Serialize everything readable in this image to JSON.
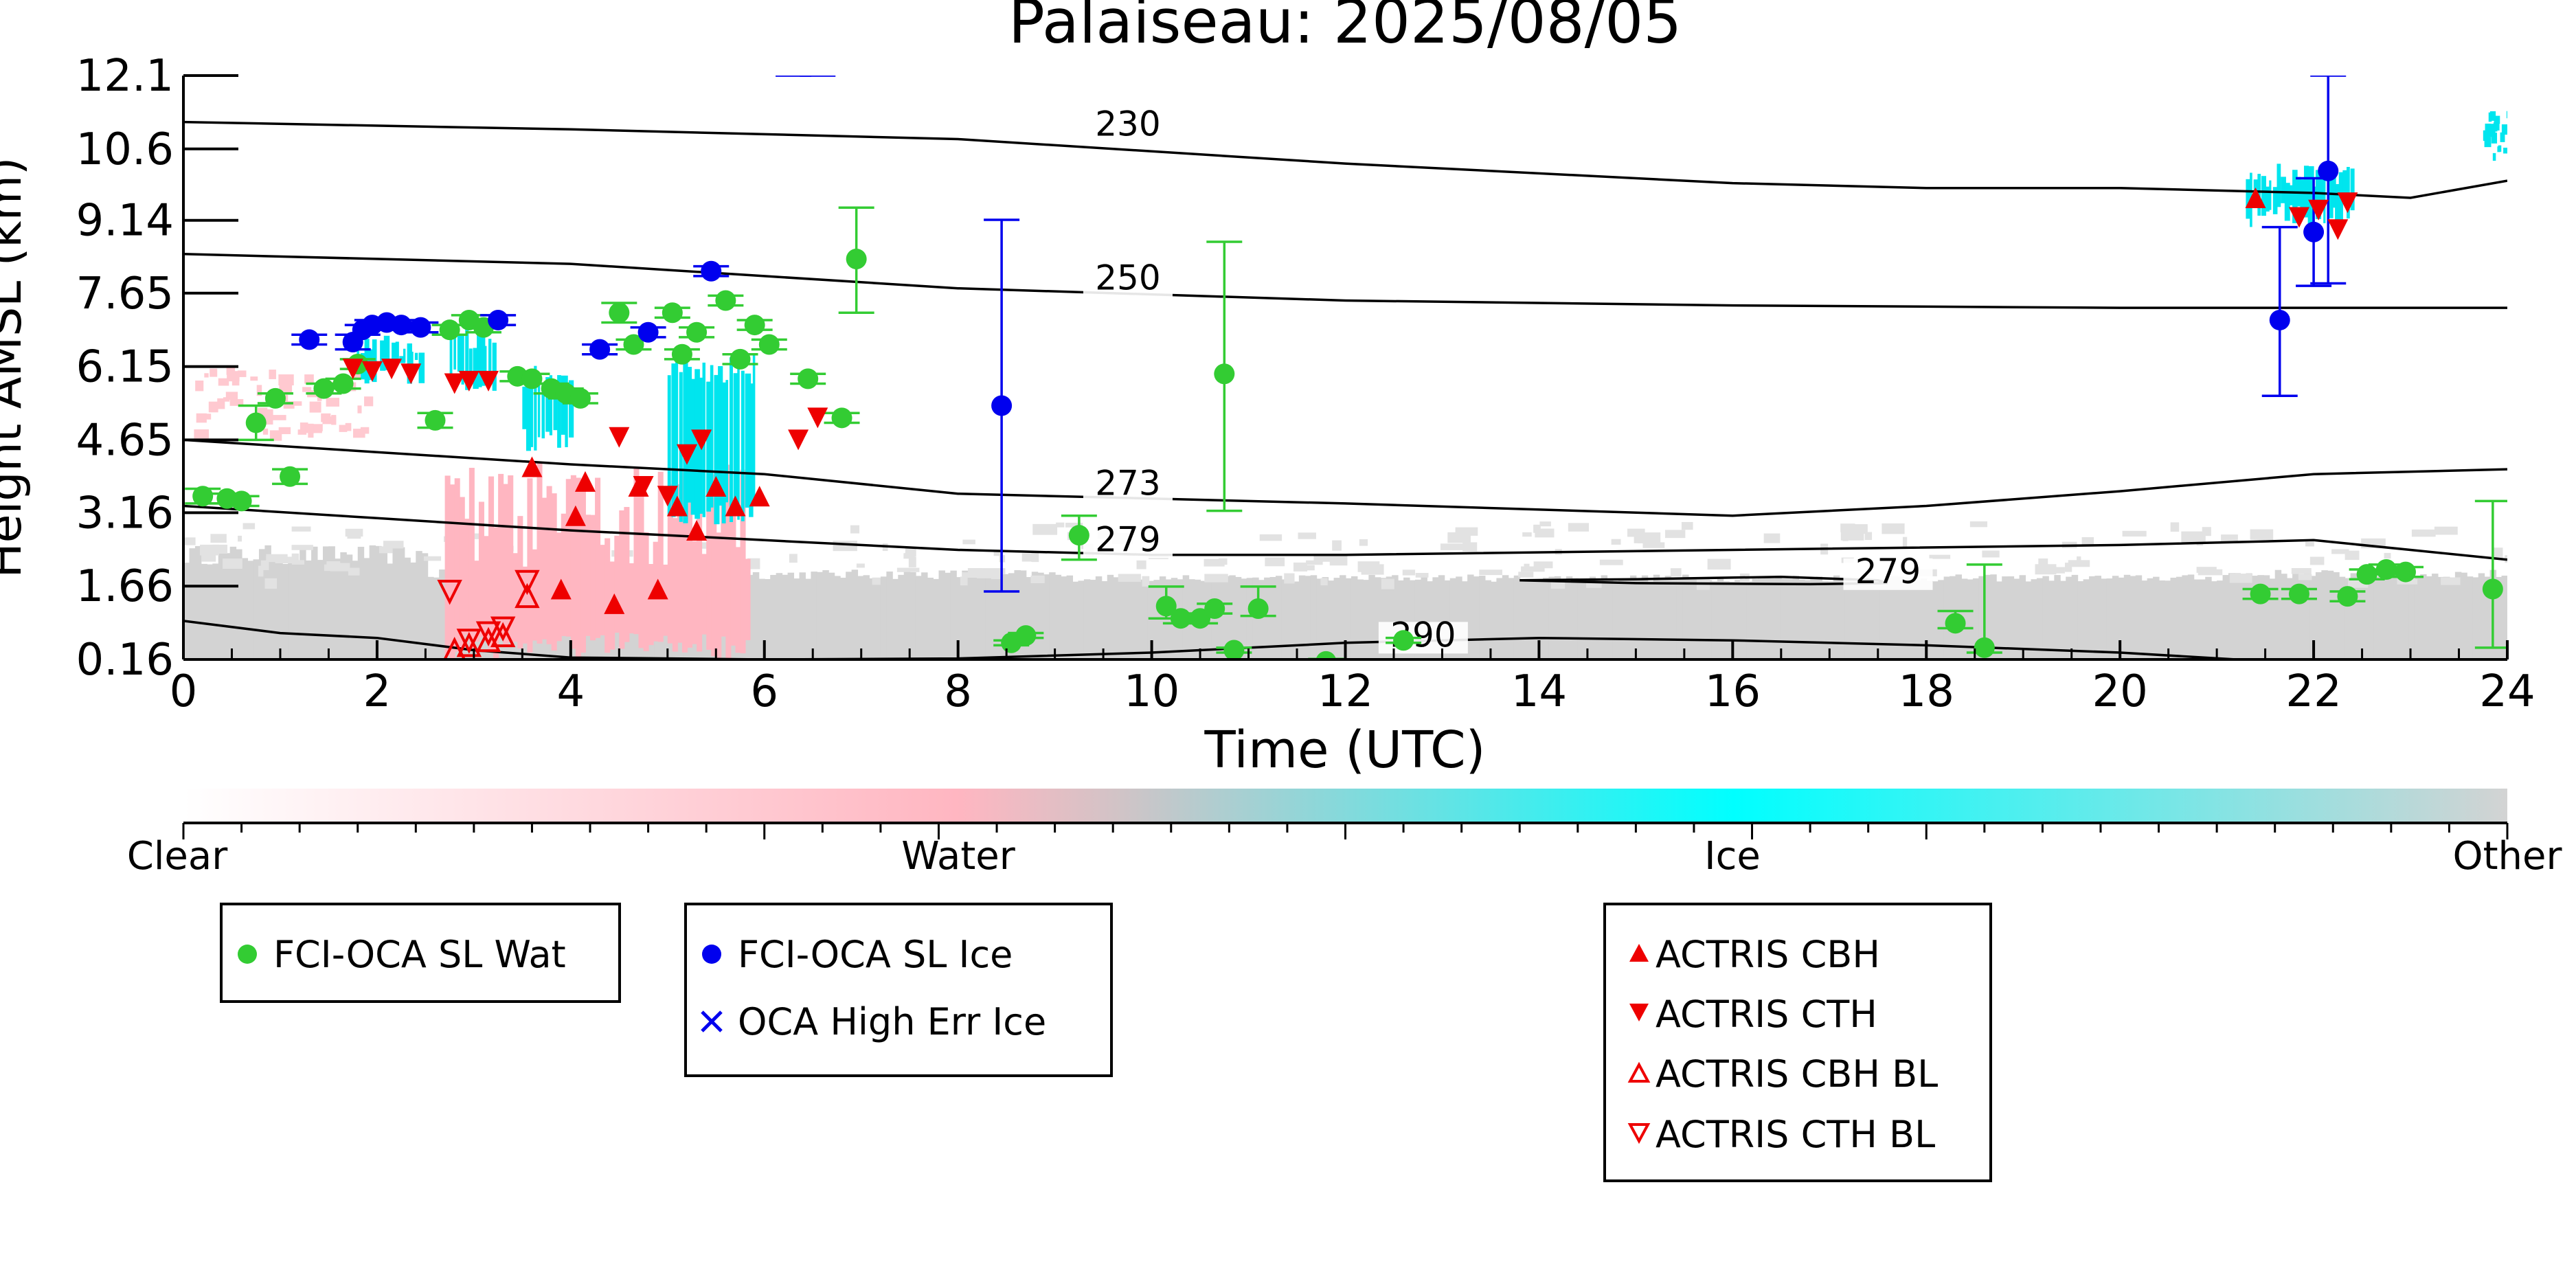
{
  "chart_data": {
    "type": "scatter",
    "title": "Palaiseau: 2025/08/05",
    "xlabel": "Time (UTC)",
    "ylabel": "Height AMSL (km)",
    "xlim": [
      0,
      24
    ],
    "ylim": [
      0.16,
      12.1
    ],
    "x_ticks": [
      0,
      2,
      4,
      6,
      8,
      10,
      12,
      14,
      16,
      18,
      20,
      22,
      24
    ],
    "x_tick_labels": [
      "0",
      "2",
      "4",
      "6",
      "8",
      "10",
      "12",
      "14",
      "16",
      "18",
      "20",
      "22",
      "24"
    ],
    "y_ticks": [
      0.16,
      1.66,
      3.16,
      4.65,
      6.15,
      7.65,
      9.14,
      10.6,
      12.1
    ],
    "y_tick_labels": [
      "0.16",
      "1.66",
      "3.16",
      "4.65",
      "6.15",
      "7.65",
      "9.14",
      "10.6",
      "12.1"
    ],
    "grid": false,
    "colorbar": {
      "labels": [
        "Clear",
        "Water",
        "Ice",
        "Other"
      ],
      "colors": [
        "#ffffff",
        "#ffb6c1",
        "#00ffff",
        "#d3d3d3"
      ]
    },
    "contour_labels": [
      "230",
      "250",
      "273",
      "279",
      "279",
      "290"
    ],
    "contours": [
      {
        "label": "230",
        "x": [
          0,
          4,
          8,
          12,
          16,
          18,
          20,
          22,
          23,
          24
        ],
        "y": [
          11.15,
          11.0,
          10.8,
          10.3,
          9.9,
          9.8,
          9.8,
          9.7,
          9.6,
          9.95
        ]
      },
      {
        "label": "250",
        "x": [
          0,
          4,
          8,
          12,
          16,
          20,
          24
        ],
        "y": [
          8.45,
          8.25,
          7.75,
          7.5,
          7.4,
          7.35,
          7.35
        ]
      },
      {
        "label": "273",
        "x": [
          0,
          2,
          4,
          6,
          8,
          12,
          16,
          18,
          20,
          22,
          24
        ],
        "y": [
          4.65,
          4.4,
          4.15,
          3.95,
          3.55,
          3.35,
          3.1,
          3.3,
          3.6,
          3.95,
          4.05
        ]
      },
      {
        "label": "279",
        "x": [
          0,
          2,
          4,
          6,
          8,
          10,
          12,
          16,
          20,
          22,
          23,
          24
        ],
        "y": [
          3.3,
          3.05,
          2.8,
          2.6,
          2.4,
          2.3,
          2.3,
          2.4,
          2.5,
          2.6,
          2.4,
          2.2
        ]
      },
      {
        "label": "279",
        "x": [
          13.8,
          15,
          16.5,
          17.5,
          17.6,
          16.8,
          15,
          13.8
        ],
        "y": [
          1.78,
          1.8,
          1.85,
          1.78,
          1.72,
          1.7,
          1.72,
          1.78
        ]
      },
      {
        "label": "290",
        "x": [
          0,
          1,
          2,
          3,
          4,
          6,
          8,
          10,
          12,
          14,
          16,
          18,
          20,
          21.2
        ],
        "y": [
          0.95,
          0.7,
          0.6,
          0.35,
          0.2,
          0.16,
          0.18,
          0.3,
          0.5,
          0.6,
          0.55,
          0.45,
          0.3,
          0.16
        ]
      }
    ],
    "series": [
      {
        "name": "FCI-OCA SL Wat",
        "color": "#33cc33",
        "marker": "circle",
        "x": [
          0.2,
          0.45,
          0.6,
          0.75,
          0.95,
          1.1,
          1.45,
          1.65,
          1.8,
          2.6,
          2.75,
          2.95,
          3.1,
          3.45,
          3.6,
          3.8,
          3.95,
          4.1,
          4.5,
          4.65,
          5.05,
          5.15,
          5.3,
          5.6,
          5.75,
          5.9,
          6.05,
          6.45,
          6.8,
          6.95,
          8.55,
          8.7,
          9.25,
          10.15,
          10.3,
          10.5,
          10.65,
          10.75,
          10.85,
          11.1,
          11.8,
          12.6,
          18.3,
          18.6,
          21.45,
          21.85,
          22.35,
          22.55,
          22.75,
          22.95,
          23.85
        ],
        "y": [
          3.5,
          3.45,
          3.4,
          5.0,
          5.5,
          3.9,
          5.7,
          5.8,
          6.2,
          5.05,
          6.9,
          7.1,
          6.95,
          5.95,
          5.9,
          5.7,
          5.6,
          5.5,
          7.25,
          6.6,
          7.25,
          6.4,
          6.85,
          7.5,
          6.3,
          7.0,
          6.6,
          5.9,
          5.1,
          8.35,
          0.5,
          0.65,
          2.7,
          1.25,
          1.0,
          1.0,
          1.2,
          6.0,
          0.35,
          1.2,
          0.12,
          0.55,
          0.9,
          0.4,
          1.5,
          1.5,
          1.45,
          1.9,
          2.0,
          1.95,
          1.6
        ],
        "err_low": [
          0.15,
          0.1,
          0.1,
          0.35,
          0.1,
          0.15,
          0.1,
          0.1,
          0.1,
          0.15,
          0.1,
          0.1,
          0.1,
          0.1,
          0.1,
          0.1,
          0.1,
          0.1,
          0.2,
          0.1,
          0.1,
          0.1,
          0.1,
          0.1,
          0.1,
          0.1,
          0.1,
          0.1,
          0.1,
          1.1,
          0.05,
          0.05,
          0.5,
          0.25,
          0.1,
          0.1,
          0.1,
          2.8,
          0.05,
          0.15,
          0.05,
          0.05,
          0.1,
          0.1,
          0.1,
          0.1,
          0.1,
          0.1,
          0.1,
          0.1,
          1.2
        ],
        "err_high": [
          0.15,
          0.1,
          0.1,
          0.35,
          0.1,
          0.15,
          0.1,
          0.1,
          0.1,
          0.15,
          0.1,
          0.1,
          0.1,
          0.1,
          0.1,
          0.1,
          0.1,
          0.1,
          0.2,
          0.1,
          0.1,
          0.1,
          0.1,
          0.1,
          0.1,
          0.1,
          0.1,
          0.1,
          0.1,
          1.05,
          0.05,
          0.05,
          0.4,
          0.4,
          0.1,
          0.1,
          0.1,
          2.7,
          0.05,
          0.45,
          0.05,
          0.05,
          0.25,
          1.7,
          0.1,
          0.1,
          0.1,
          0.1,
          0.1,
          0.1,
          1.8
        ]
      },
      {
        "name": "FCI-OCA SL Ice",
        "color": "#0000ee",
        "marker": "circle",
        "x": [
          1.3,
          1.75,
          1.85,
          1.95,
          2.1,
          2.25,
          2.45,
          3.25,
          4.3,
          4.8,
          5.45,
          8.45,
          21.65,
          22.0,
          22.15
        ],
        "y": [
          6.7,
          6.65,
          6.9,
          7.0,
          7.05,
          7.0,
          6.95,
          7.1,
          6.5,
          6.85,
          8.1,
          5.35,
          7.1,
          8.9,
          10.15
        ],
        "err_low": [
          0.1,
          0.15,
          0.1,
          0.1,
          0.1,
          0.1,
          0.1,
          0.1,
          0.1,
          0.1,
          0.1,
          3.8,
          1.55,
          1.1,
          2.3
        ],
        "err_high": [
          0.1,
          0.15,
          0.1,
          0.1,
          0.1,
          0.1,
          0.1,
          0.1,
          0.1,
          0.1,
          0.1,
          3.8,
          1.9,
          1.1,
          1.95
        ]
      },
      {
        "name": "OCA High Err Ice",
        "color": "#0000ee",
        "marker": "x",
        "x": [],
        "y": []
      },
      {
        "name": "ACTRIS CBH",
        "color": "#ee0000",
        "marker": "triangle-up",
        "x": [
          3.6,
          3.9,
          4.05,
          4.15,
          4.45,
          4.7,
          4.9,
          5.1,
          5.3,
          5.5,
          5.7,
          5.95,
          21.4
        ],
        "y": [
          4.1,
          1.6,
          3.1,
          3.8,
          1.3,
          3.7,
          1.6,
          3.3,
          2.8,
          3.7,
          3.3,
          3.5,
          9.6
        ],
        "err_low": [],
        "err_high": []
      },
      {
        "name": "ACTRIS CTH",
        "color": "#ee0000",
        "marker": "triangle-down",
        "x": [
          1.75,
          1.95,
          2.15,
          2.35,
          2.8,
          2.95,
          3.15,
          4.5,
          4.75,
          5.0,
          5.2,
          5.35,
          6.35,
          6.55,
          21.85,
          22.05,
          22.25,
          22.35
        ],
        "y": [
          6.1,
          6.05,
          6.1,
          6.0,
          5.8,
          5.85,
          5.85,
          4.7,
          3.7,
          3.5,
          4.35,
          4.65,
          4.65,
          5.1,
          9.2,
          9.35,
          8.95,
          9.5
        ]
      },
      {
        "name": "ACTRIS CBH BL",
        "color": "#ee0000",
        "marker": "triangle-up-open",
        "x": [
          2.8,
          2.95,
          3.15,
          3.3,
          3.55
        ],
        "y": [
          0.35,
          0.45,
          0.55,
          0.65,
          1.45
        ]
      },
      {
        "name": "ACTRIS CTH BL",
        "color": "#ee0000",
        "marker": "triangle-down-open",
        "x": [
          2.75,
          2.95,
          3.15,
          3.3,
          3.55
        ],
        "y": [
          1.55,
          0.55,
          0.7,
          0.8,
          1.75
        ]
      }
    ],
    "legend_groups": [
      [
        "FCI-OCA SL Wat"
      ],
      [
        "FCI-OCA SL Ice",
        "OCA High Err Ice"
      ],
      [
        "ACTRIS CBH",
        "ACTRIS CTH",
        "ACTRIS CBH BL",
        "ACTRIS CTH BL"
      ]
    ]
  }
}
